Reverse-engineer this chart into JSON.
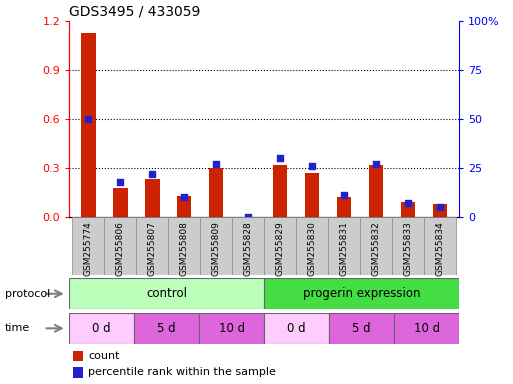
{
  "title": "GDS3495 / 433059",
  "samples": [
    "GSM255774",
    "GSM255806",
    "GSM255807",
    "GSM255808",
    "GSM255809",
    "GSM255828",
    "GSM255829",
    "GSM255830",
    "GSM255831",
    "GSM255832",
    "GSM255833",
    "GSM255834"
  ],
  "count_values": [
    1.13,
    0.18,
    0.23,
    0.13,
    0.3,
    0.0,
    0.32,
    0.27,
    0.12,
    0.32,
    0.09,
    0.08
  ],
  "percentile_values": [
    50,
    18,
    22,
    10,
    27,
    0,
    30,
    26,
    11,
    27,
    7,
    5
  ],
  "ylim_left": [
    0,
    1.2
  ],
  "ylim_right": [
    0,
    100
  ],
  "yticks_left": [
    0,
    0.3,
    0.6,
    0.9,
    1.2
  ],
  "yticks_right": [
    0,
    25,
    50,
    75,
    100
  ],
  "bar_color": "#cc2200",
  "dot_color": "#2222cc",
  "grid_yticks": [
    0.3,
    0.6,
    0.9
  ],
  "protocol_colors": [
    "#bbffbb",
    "#44dd44"
  ],
  "time_colors": [
    "#ffccff",
    "#dd66dd",
    "#dd66dd",
    "#ffccff",
    "#dd66dd",
    "#dd66dd"
  ],
  "time_labels": [
    "0 d",
    "5 d",
    "10 d",
    "0 d",
    "5 d",
    "10 d"
  ],
  "sample_bg_color": "#cccccc",
  "legend_count_color": "#cc2200",
  "legend_percentile_color": "#2222cc"
}
